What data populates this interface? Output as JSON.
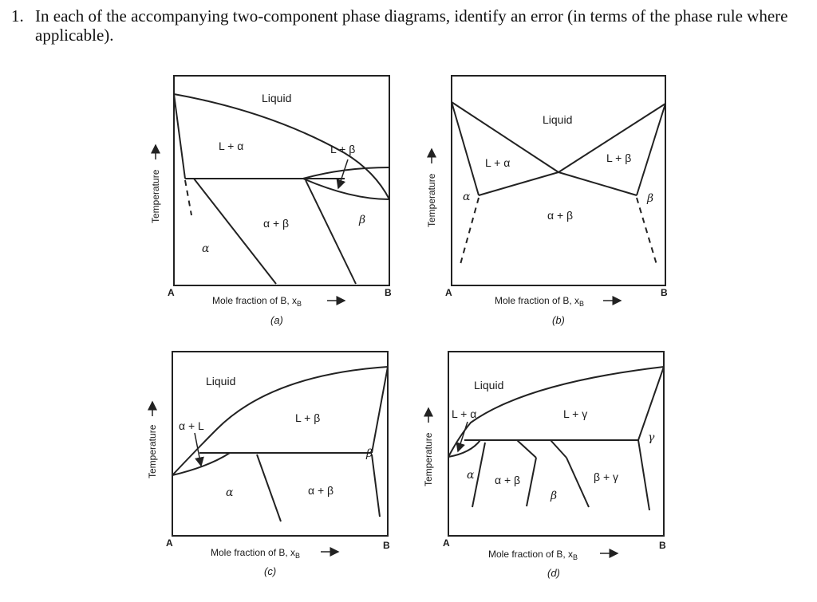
{
  "question": {
    "number": "1.",
    "text": "In each of the accompanying two-component phase diagrams, identify an error (in terms of the phase rule where applicable)."
  },
  "diagrams": {
    "a": {
      "caption": "(a)",
      "ylabel": "Temperature",
      "xlabel": "Mole fraction of B, x",
      "xlabel_sub": "B",
      "left": "A",
      "right": "B",
      "liquid": "Liquid",
      "l_alpha": "L + α",
      "l_beta": "L + β",
      "alpha_beta": "α + β",
      "beta": "β",
      "alpha": "α"
    },
    "b": {
      "caption": "(b)",
      "ylabel": "Temperature",
      "xlabel": "Mole fraction of B, x",
      "xlabel_sub": "B",
      "left": "A",
      "right": "B",
      "liquid": "Liquid",
      "l_alpha": "L + α",
      "l_beta": "L + β",
      "alpha_beta": "α + β",
      "beta": "β",
      "alpha": "α"
    },
    "c": {
      "caption": "(c)",
      "ylabel": "Temperature",
      "xlabel": "Mole fraction of B, x",
      "xlabel_sub": "B",
      "left": "A",
      "right": "B",
      "liquid": "Liquid",
      "alpha_l": "α + L",
      "l_beta": "L + β",
      "alpha_beta": "α + β",
      "beta": "β",
      "alpha": "α"
    },
    "d": {
      "caption": "(d)",
      "ylabel": "Temperature",
      "xlabel": "Mole fraction of B, x",
      "xlabel_sub": "B",
      "left": "A",
      "right": "B",
      "liquid": "Liquid",
      "l_alpha": "L + α",
      "l_gamma": "L + γ",
      "alpha_beta": "α + β",
      "beta_gamma": "β + γ",
      "gamma": "γ",
      "alpha": "α",
      "beta": "β"
    }
  }
}
